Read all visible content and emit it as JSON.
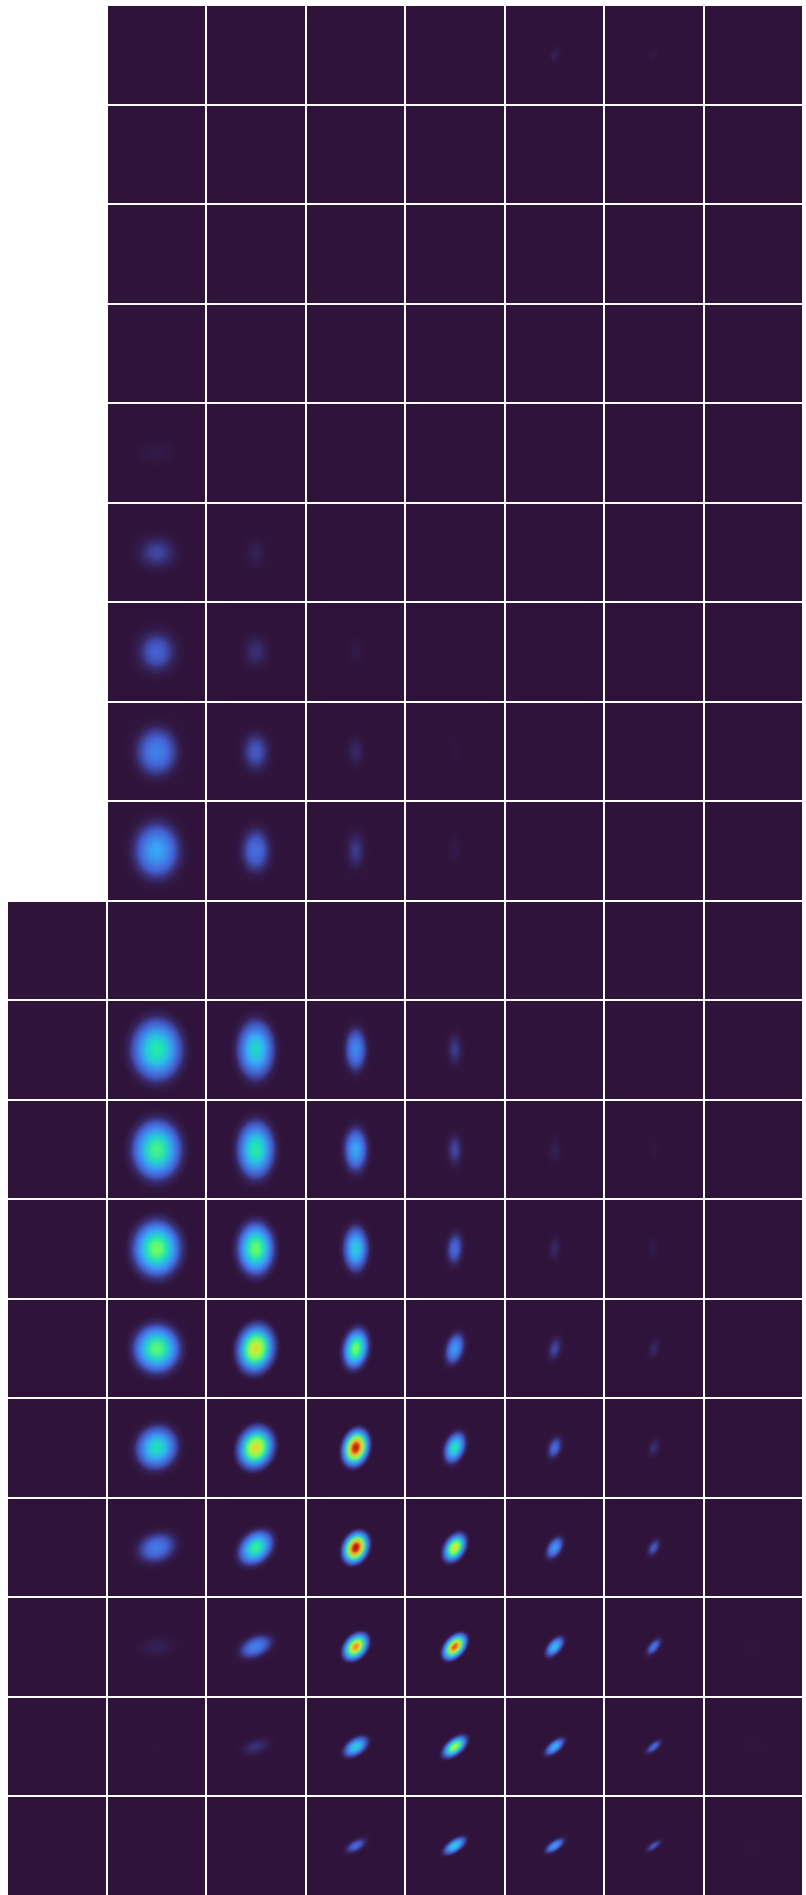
{
  "grid": {
    "background": "#ffffff",
    "cell_background": "#30133a",
    "colormap": [
      "#30123b",
      "#4662d7",
      "#36aaf9",
      "#1ae4b6",
      "#72fe5e",
      "#c8ef34",
      "#faba39",
      "#f66b19",
      "#ca2a04",
      "#7a0403"
    ],
    "n_rows": 19,
    "n_cols": 8,
    "first_col_starts_at_row": 9,
    "intensity": [
      [
        0,
        0,
        0,
        0,
        0,
        0.04,
        0.03,
        0
      ],
      [
        0,
        0,
        0,
        0,
        0,
        0,
        0,
        0
      ],
      [
        0,
        0,
        0,
        0,
        0,
        0,
        0,
        0
      ],
      [
        0,
        0,
        0,
        0,
        0,
        0,
        0,
        0
      ],
      [
        0,
        0.03,
        0,
        0,
        0,
        0,
        0,
        0
      ],
      [
        0,
        0.08,
        0.04,
        0,
        0,
        0,
        0,
        0
      ],
      [
        0,
        0.11,
        0.06,
        0.03,
        0,
        0,
        0,
        0
      ],
      [
        0,
        0.16,
        0.1,
        0.05,
        0.02,
        0,
        0,
        0
      ],
      [
        0,
        0.22,
        0.13,
        0.07,
        0.03,
        0,
        0,
        0
      ],
      [
        0,
        0,
        0,
        0,
        0,
        0,
        0,
        0
      ],
      [
        0,
        0.36,
        0.31,
        0.17,
        0.07,
        0,
        0,
        0
      ],
      [
        0,
        0.4,
        0.36,
        0.22,
        0.08,
        0.04,
        0.02,
        0
      ],
      [
        0,
        0.45,
        0.44,
        0.29,
        0.12,
        0.05,
        0.03,
        0
      ],
      [
        0,
        0.42,
        0.6,
        0.45,
        0.2,
        0.08,
        0.05,
        0
      ],
      [
        0,
        0.33,
        0.62,
        0.93,
        0.35,
        0.12,
        0.06,
        0
      ],
      [
        0,
        0.15,
        0.38,
        0.95,
        0.6,
        0.2,
        0.1,
        0
      ],
      [
        0,
        0.04,
        0.16,
        0.75,
        0.82,
        0.26,
        0.14,
        0.01
      ],
      [
        0,
        0.01,
        0.06,
        0.3,
        0.52,
        0.24,
        0.12,
        0.01
      ],
      [
        0,
        0,
        0,
        0.12,
        0.3,
        0.2,
        0.1,
        0.01
      ]
    ],
    "rotation_deg": [
      [
        0,
        0,
        0,
        0,
        0,
        30,
        30,
        0
      ],
      [
        0,
        0,
        0,
        0,
        0,
        0,
        0,
        0
      ],
      [
        0,
        0,
        0,
        0,
        0,
        0,
        0,
        0
      ],
      [
        0,
        0,
        0,
        0,
        0,
        0,
        0,
        0
      ],
      [
        0,
        90,
        0,
        0,
        0,
        0,
        0,
        0
      ],
      [
        0,
        90,
        0,
        0,
        0,
        0,
        0,
        0
      ],
      [
        0,
        5,
        0,
        0,
        0,
        0,
        0,
        0
      ],
      [
        0,
        0,
        0,
        0,
        0,
        0,
        0,
        0
      ],
      [
        0,
        0,
        0,
        0,
        0,
        0,
        0,
        0
      ],
      [
        0,
        0,
        0,
        0,
        0,
        0,
        0,
        0
      ],
      [
        0,
        0,
        0,
        0,
        0,
        0,
        0,
        0
      ],
      [
        0,
        0,
        0,
        0,
        0,
        0,
        0,
        0
      ],
      [
        0,
        0,
        0,
        0,
        5,
        5,
        5,
        0
      ],
      [
        0,
        0,
        10,
        10,
        15,
        15,
        15,
        0
      ],
      [
        0,
        30,
        20,
        15,
        20,
        20,
        20,
        0
      ],
      [
        0,
        70,
        45,
        25,
        30,
        30,
        30,
        0
      ],
      [
        0,
        80,
        65,
        40,
        40,
        40,
        40,
        0
      ],
      [
        0,
        80,
        70,
        55,
        50,
        50,
        50,
        0
      ],
      [
        0,
        90,
        75,
        60,
        55,
        55,
        55,
        0
      ]
    ],
    "elongation": [
      [
        1,
        1,
        1,
        1,
        1,
        2,
        2,
        1
      ],
      [
        1,
        1,
        1,
        1,
        1,
        1,
        1,
        1
      ],
      [
        1,
        1,
        1,
        1,
        1,
        1,
        1,
        1
      ],
      [
        1,
        1,
        1,
        1,
        1,
        1,
        1,
        1
      ],
      [
        1,
        1.7,
        1,
        1,
        1,
        1,
        1,
        1
      ],
      [
        1,
        1.3,
        1.4,
        1,
        1,
        1,
        1,
        1
      ],
      [
        1,
        1.2,
        1.5,
        1.8,
        1,
        1,
        1,
        1
      ],
      [
        1,
        1.3,
        1.6,
        2,
        2.2,
        1,
        1,
        1
      ],
      [
        1,
        1.35,
        1.7,
        2.2,
        2.4,
        1,
        1,
        1
      ],
      [
        1,
        1,
        1,
        1,
        1,
        1,
        1,
        1
      ],
      [
        1,
        1.35,
        1.75,
        2.2,
        2.4,
        2.4,
        2.4,
        1
      ],
      [
        1,
        1.35,
        1.7,
        2.1,
        2.3,
        2.4,
        2.4,
        1
      ],
      [
        1,
        1.3,
        1.6,
        2,
        2.2,
        2.3,
        2.3,
        1
      ],
      [
        1,
        1.15,
        1.45,
        1.8,
        2,
        2.1,
        2.1,
        1
      ],
      [
        1,
        1.2,
        1.35,
        1.6,
        1.8,
        1.9,
        1.9,
        1
      ],
      [
        1,
        1.5,
        1.5,
        1.5,
        1.7,
        1.9,
        2,
        1
      ],
      [
        1,
        1.8,
        1.9,
        1.6,
        1.8,
        2.1,
        2.3,
        1
      ],
      [
        1,
        2.2,
        2.2,
        1.9,
        2.1,
        2.4,
        2.6,
        1
      ],
      [
        1,
        2.5,
        2.5,
        2.3,
        2.4,
        2.6,
        2.8,
        1
      ]
    ],
    "spread": [
      [
        1,
        1,
        1,
        1,
        1,
        0.3,
        0.25,
        1
      ],
      [
        1,
        1,
        1,
        1,
        1,
        1,
        1,
        1
      ],
      [
        1,
        1,
        1,
        1,
        1,
        1,
        1,
        1
      ],
      [
        1,
        1,
        1,
        1,
        1,
        1,
        1,
        1
      ],
      [
        1,
        0.75,
        1,
        1,
        1,
        1,
        1,
        1
      ],
      [
        1,
        0.8,
        0.6,
        1,
        1,
        1,
        1,
        1
      ],
      [
        1,
        0.85,
        0.65,
        0.5,
        1,
        1,
        1,
        1
      ],
      [
        1,
        0.9,
        0.7,
        0.55,
        0.45,
        1,
        1,
        1
      ],
      [
        1,
        0.95,
        0.75,
        0.6,
        0.5,
        1,
        1,
        1
      ],
      [
        1,
        1,
        1,
        1,
        1,
        1,
        1,
        1
      ],
      [
        1,
        0.95,
        0.8,
        0.6,
        0.5,
        0.45,
        0.4,
        1
      ],
      [
        1,
        0.9,
        0.78,
        0.6,
        0.5,
        0.45,
        0.4,
        1
      ],
      [
        1,
        0.85,
        0.72,
        0.58,
        0.48,
        0.42,
        0.38,
        1
      ],
      [
        1,
        0.78,
        0.66,
        0.52,
        0.45,
        0.4,
        0.36,
        1
      ],
      [
        1,
        0.72,
        0.6,
        0.46,
        0.42,
        0.36,
        0.33,
        1
      ],
      [
        1,
        0.68,
        0.56,
        0.42,
        0.38,
        0.34,
        0.3,
        1
      ],
      [
        1,
        0.66,
        0.52,
        0.38,
        0.35,
        0.31,
        0.28,
        1
      ],
      [
        1,
        0.6,
        0.5,
        0.36,
        0.33,
        0.29,
        0.26,
        1
      ],
      [
        1,
        0.55,
        0.45,
        0.33,
        0.3,
        0.27,
        0.24,
        1
      ]
    ]
  }
}
